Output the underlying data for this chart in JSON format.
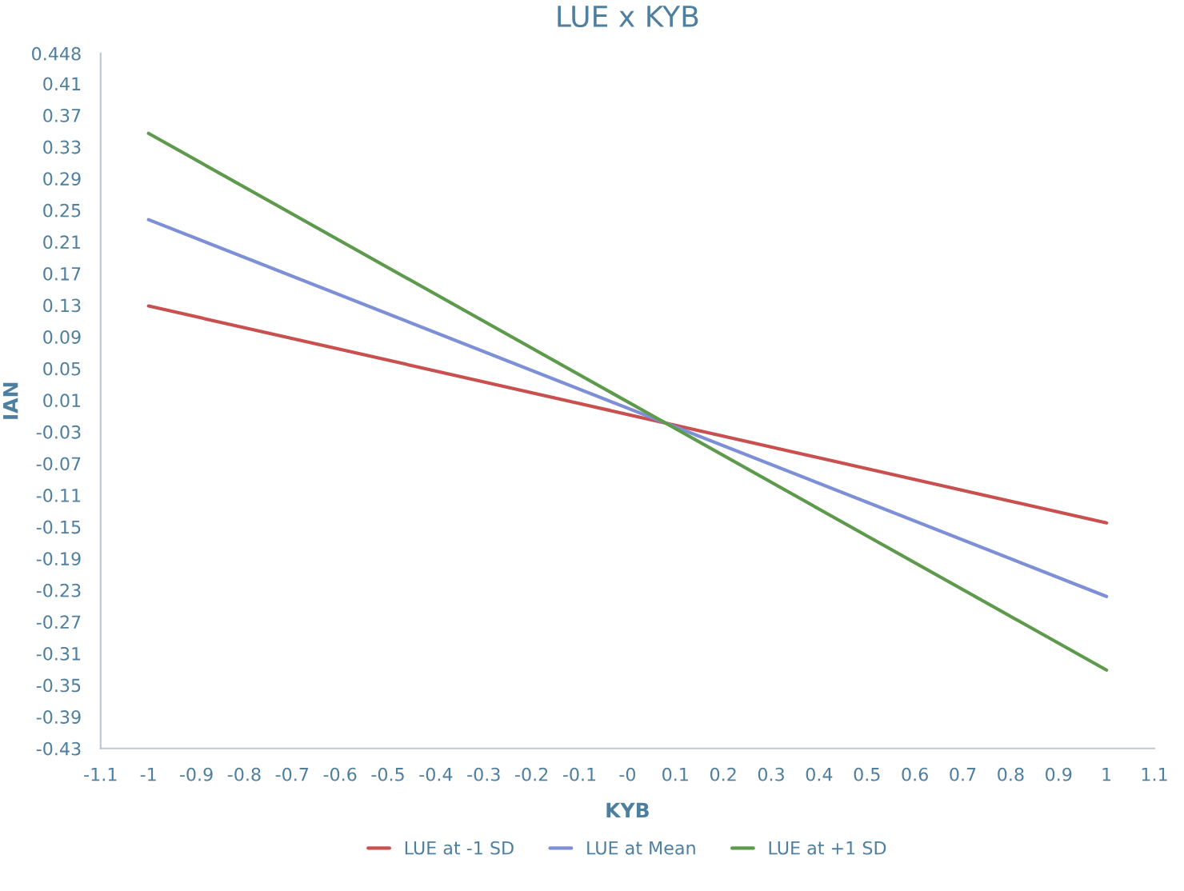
{
  "chart_data": {
    "type": "line",
    "title": "LUE x KYB",
    "xlabel": "KYB",
    "ylabel": "IAN",
    "x": [
      -1,
      1
    ],
    "series": [
      {
        "name": "LUE at -1 SD",
        "color": "#c8504f",
        "values": [
          0.129,
          -0.145
        ]
      },
      {
        "name": "LUE at Mean",
        "color": "#7d8fd6",
        "values": [
          0.238,
          -0.238
        ]
      },
      {
        "name": "LUE at +1 SD",
        "color": "#5e9a4c",
        "values": [
          0.347,
          -0.331
        ]
      }
    ],
    "xlim": [
      -1.1,
      1.1
    ],
    "xticks": [
      -1.1,
      -1,
      -0.9,
      -0.8,
      -0.7,
      -0.6,
      -0.5,
      -0.4,
      -0.3,
      -0.2,
      -0.1,
      {
        "value": 0,
        "label": "-0"
      },
      0.1,
      0.2,
      0.3,
      0.4,
      0.5,
      0.6,
      0.7,
      0.8,
      0.9,
      1,
      1.1
    ],
    "ylim": [
      -0.43,
      0.448
    ],
    "yticks": [
      0.448,
      0.41,
      0.37,
      0.33,
      0.29,
      0.25,
      0.21,
      0.17,
      0.13,
      0.09,
      0.05,
      0.01,
      -0.03,
      -0.07,
      -0.11,
      -0.15,
      -0.19,
      -0.23,
      -0.27,
      -0.31,
      -0.35,
      -0.39,
      -0.43
    ],
    "grid": false,
    "legend": "bottom",
    "marker": "none",
    "line_style": "solid"
  }
}
